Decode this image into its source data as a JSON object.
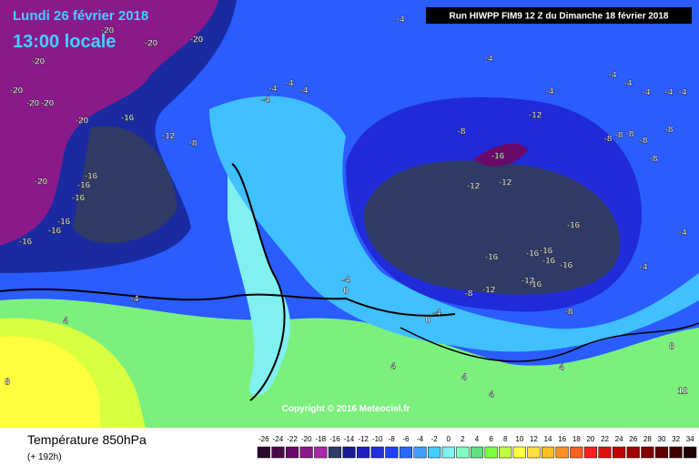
{
  "header": {
    "date": "Lundi 26 février 2018",
    "time": "13:00 locale",
    "run": "Run HIWPP FIM9 12 Z du Dimanche 18 février 2018"
  },
  "copyright": "Copyright © 2016 Meteociel.fr",
  "footer": {
    "title": "Température 850hPa",
    "lead": "(+ 192h)"
  },
  "scale": {
    "ticks": [
      -26,
      -24,
      -22,
      -20,
      -18,
      -16,
      -14,
      -12,
      -10,
      -8,
      -6,
      -4,
      -2,
      0,
      2,
      4,
      6,
      8,
      10,
      12,
      14,
      16,
      18,
      20,
      22,
      24,
      26,
      28,
      30,
      32,
      34
    ],
    "colors": [
      "#2a0a2a",
      "#4a0a4a",
      "#6a0a6a",
      "#8a1a8a",
      "#aa2aaa",
      "#2f3a66",
      "#1a1a9a",
      "#2020c0",
      "#2030e0",
      "#2040ff",
      "#2a6aff",
      "#40a0ff",
      "#40d0ff",
      "#80f0f0",
      "#80ffc0",
      "#60e080",
      "#80ff40",
      "#c0ff40",
      "#ffff40",
      "#ffe040",
      "#ffc020",
      "#ff9020",
      "#ff6020",
      "#ff2020",
      "#e01010",
      "#c00000",
      "#a00000",
      "#800000",
      "#600000",
      "#400000",
      "#200000"
    ]
  },
  "contour_labels": [
    -20,
    -20,
    -20,
    -20,
    -20,
    -20,
    -20,
    -20,
    -20,
    -16,
    -16,
    -16,
    -16,
    -16,
    -16,
    -16,
    -12,
    -12,
    -12,
    -12,
    -12,
    -12,
    -8,
    -8,
    -8,
    -8,
    -8,
    -8,
    -8,
    -8,
    -8,
    -8,
    -16,
    -16,
    -16,
    -16,
    -16,
    -16,
    -16,
    -16,
    -4,
    -4,
    -4,
    -4,
    -4,
    -4,
    -4,
    -4,
    -4,
    -4,
    -4,
    -4,
    0,
    0,
    4,
    4,
    4,
    4,
    4,
    8,
    8,
    12,
    -4,
    -4,
    -4,
    -4,
    -4
  ]
}
